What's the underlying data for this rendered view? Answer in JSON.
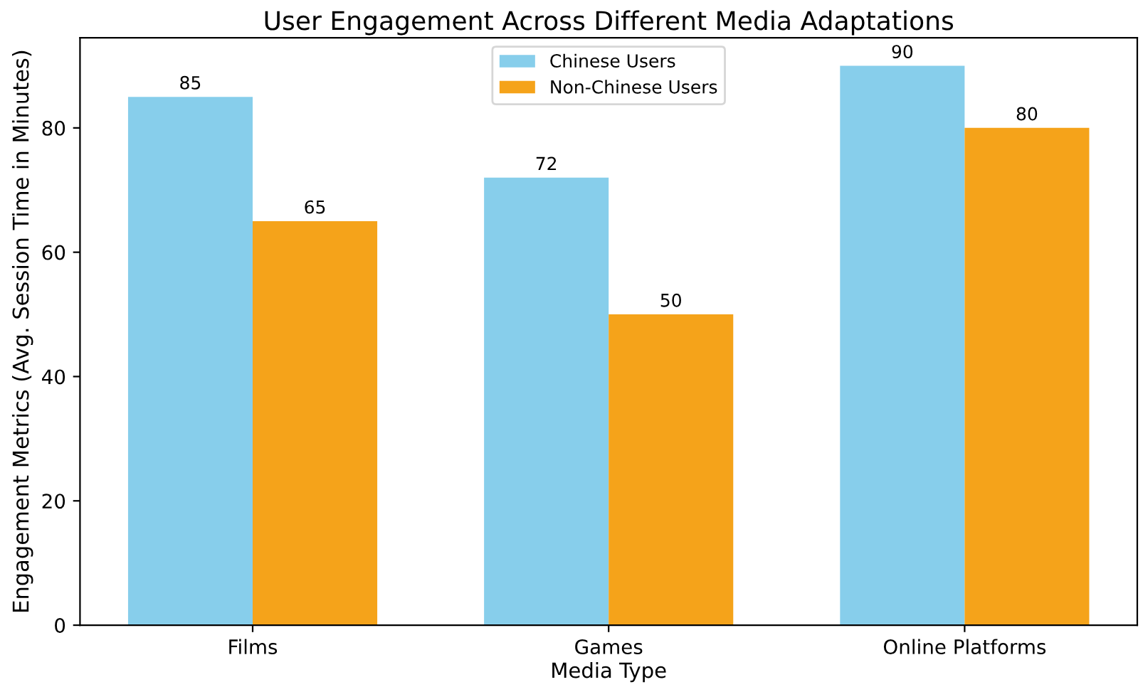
{
  "chart_data": {
    "type": "bar",
    "title": "User Engagement Across Different Media Adaptations",
    "xlabel": "Media Type",
    "ylabel": "Engagement Metrics (Avg. Session Time in Minutes)",
    "categories": [
      "Films",
      "Games",
      "Online Platforms"
    ],
    "series": [
      {
        "name": "Chinese Users",
        "color": "#87ceeb",
        "values": [
          85,
          72,
          90
        ]
      },
      {
        "name": "Non-Chinese Users",
        "color": "#f5a31a",
        "values": [
          65,
          50,
          80
        ]
      }
    ],
    "ylim": [
      0,
      94.5
    ],
    "yticks": [
      0,
      20,
      40,
      60,
      80
    ],
    "data_labels": true,
    "legend": "top",
    "grid": false
  }
}
